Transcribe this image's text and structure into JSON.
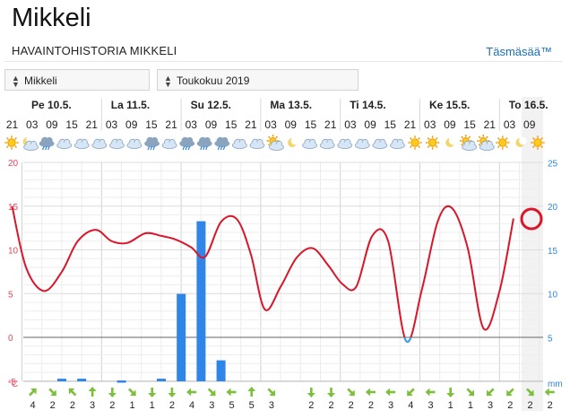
{
  "header": {
    "title": "Mikkeli",
    "subtitle": "HAVAINTOHISTORIA MIKKELI",
    "brand": "Täsmäsää™"
  },
  "controls": {
    "location": "Mikkeli",
    "month": "Toukokuu 2019"
  },
  "colors": {
    "temperature_line": "#d9162a",
    "freezing_line": "#3aa3e3",
    "precip_bar": "#2f86e8",
    "axis_left": "#e8465a",
    "axis_right": "#2f86e8",
    "wind_arrow": "#7cbf3a"
  },
  "chart_data": {
    "type": "line",
    "days": [
      "Pe 10.5.",
      "La 11.5.",
      "Su 12.5.",
      "Ma 13.5.",
      "Ti 14.5.",
      "Ke 15.5.",
      "To 16.5."
    ],
    "hours": [
      "21",
      "03",
      "09",
      "15",
      "21",
      "03",
      "09",
      "15",
      "21",
      "03",
      "09",
      "15",
      "21",
      "03",
      "09",
      "15",
      "21",
      "03",
      "09",
      "15",
      "21",
      "03",
      "09",
      "15",
      "21",
      "03",
      "09"
    ],
    "weather_icons": [
      "sun",
      "moon-cloud",
      "cloud-rain",
      "cloud",
      "cloud",
      "cloud",
      "cloud",
      "cloud",
      "cloud-rain",
      "cloud",
      "cloud-rain",
      "cloud-rain",
      "cloud-rain",
      "cloud",
      "cloud",
      "sun-cloud",
      "moon",
      "cloud",
      "cloud",
      "cloud",
      "cloud",
      "cloud",
      "cloud",
      "sun",
      "sun",
      "moon",
      "sun-cloud",
      "sun-cloud",
      "sun",
      "moon",
      "sun"
    ],
    "temperature_points": [
      {
        "t": 0,
        "y": 15
      },
      {
        "t": 0.7,
        "y": 8
      },
      {
        "t": 1.6,
        "y": 5.3
      },
      {
        "t": 2.5,
        "y": 7.5
      },
      {
        "t": 3.3,
        "y": 11
      },
      {
        "t": 4.2,
        "y": 12.3
      },
      {
        "t": 5.0,
        "y": 11
      },
      {
        "t": 5.8,
        "y": 10.8
      },
      {
        "t": 6.7,
        "y": 11.9
      },
      {
        "t": 7.5,
        "y": 11.6
      },
      {
        "t": 8.2,
        "y": 11.2
      },
      {
        "t": 9.0,
        "y": 10.3
      },
      {
        "t": 9.7,
        "y": 9.2
      },
      {
        "t": 10.5,
        "y": 13.2
      },
      {
        "t": 11.3,
        "y": 13.5
      },
      {
        "t": 12.0,
        "y": 9.5
      },
      {
        "t": 12.7,
        "y": 3.2
      },
      {
        "t": 13.5,
        "y": 5.8
      },
      {
        "t": 14.3,
        "y": 9.1
      },
      {
        "t": 15.1,
        "y": 10.2
      },
      {
        "t": 15.9,
        "y": 8.2
      },
      {
        "t": 16.6,
        "y": 6.1
      },
      {
        "t": 17.3,
        "y": 5.8
      },
      {
        "t": 18.1,
        "y": 11.6
      },
      {
        "t": 18.9,
        "y": 11.0
      },
      {
        "t": 19.8,
        "y": -0.4
      },
      {
        "t": 20.6,
        "y": 5.5
      },
      {
        "t": 21.4,
        "y": 13.3
      },
      {
        "t": 22.1,
        "y": 14.8
      },
      {
        "t": 22.9,
        "y": 10.2
      },
      {
        "t": 23.7,
        "y": 1.0
      },
      {
        "t": 24.5,
        "y": 5.3
      },
      {
        "t": 25.2,
        "y": 13.6
      }
    ],
    "precip_mm": [
      {
        "t": 2.5,
        "v": 0.3
      },
      {
        "t": 3.5,
        "v": 0.3
      },
      {
        "t": 5.5,
        "v": 0.1
      },
      {
        "t": 7.5,
        "v": 0.3
      },
      {
        "t": 8.5,
        "v": 10
      },
      {
        "t": 9.5,
        "v": 18.3
      },
      {
        "t": 10.5,
        "v": 2.4
      }
    ],
    "current_marker_t": 25.3,
    "y_left_ticks": [
      "20",
      "15",
      "10",
      "5",
      "0",
      "-5"
    ],
    "y_left_label": "°C",
    "y_right_ticks": [
      "25",
      "20",
      "15",
      "10",
      "5"
    ],
    "y_right_label": "mm",
    "ylim_left": [
      -5,
      20
    ],
    "wind_speeds": [
      "4",
      "2",
      "2",
      "3",
      "2",
      "1",
      "1",
      "2",
      "4",
      "3",
      "5",
      "5",
      "3",
      "",
      "2",
      "2",
      "2",
      "2",
      "3",
      "4",
      "3",
      "1",
      "1",
      "3",
      "2",
      "2",
      "2"
    ],
    "wind_dirs": [
      315,
      45,
      225,
      270,
      90,
      45,
      90,
      90,
      180,
      45,
      180,
      270,
      45,
      null,
      90,
      90,
      45,
      180,
      180,
      135,
      180,
      90,
      45,
      135,
      135,
      45,
      180
    ],
    "freezing_line": true,
    "grid": true
  }
}
